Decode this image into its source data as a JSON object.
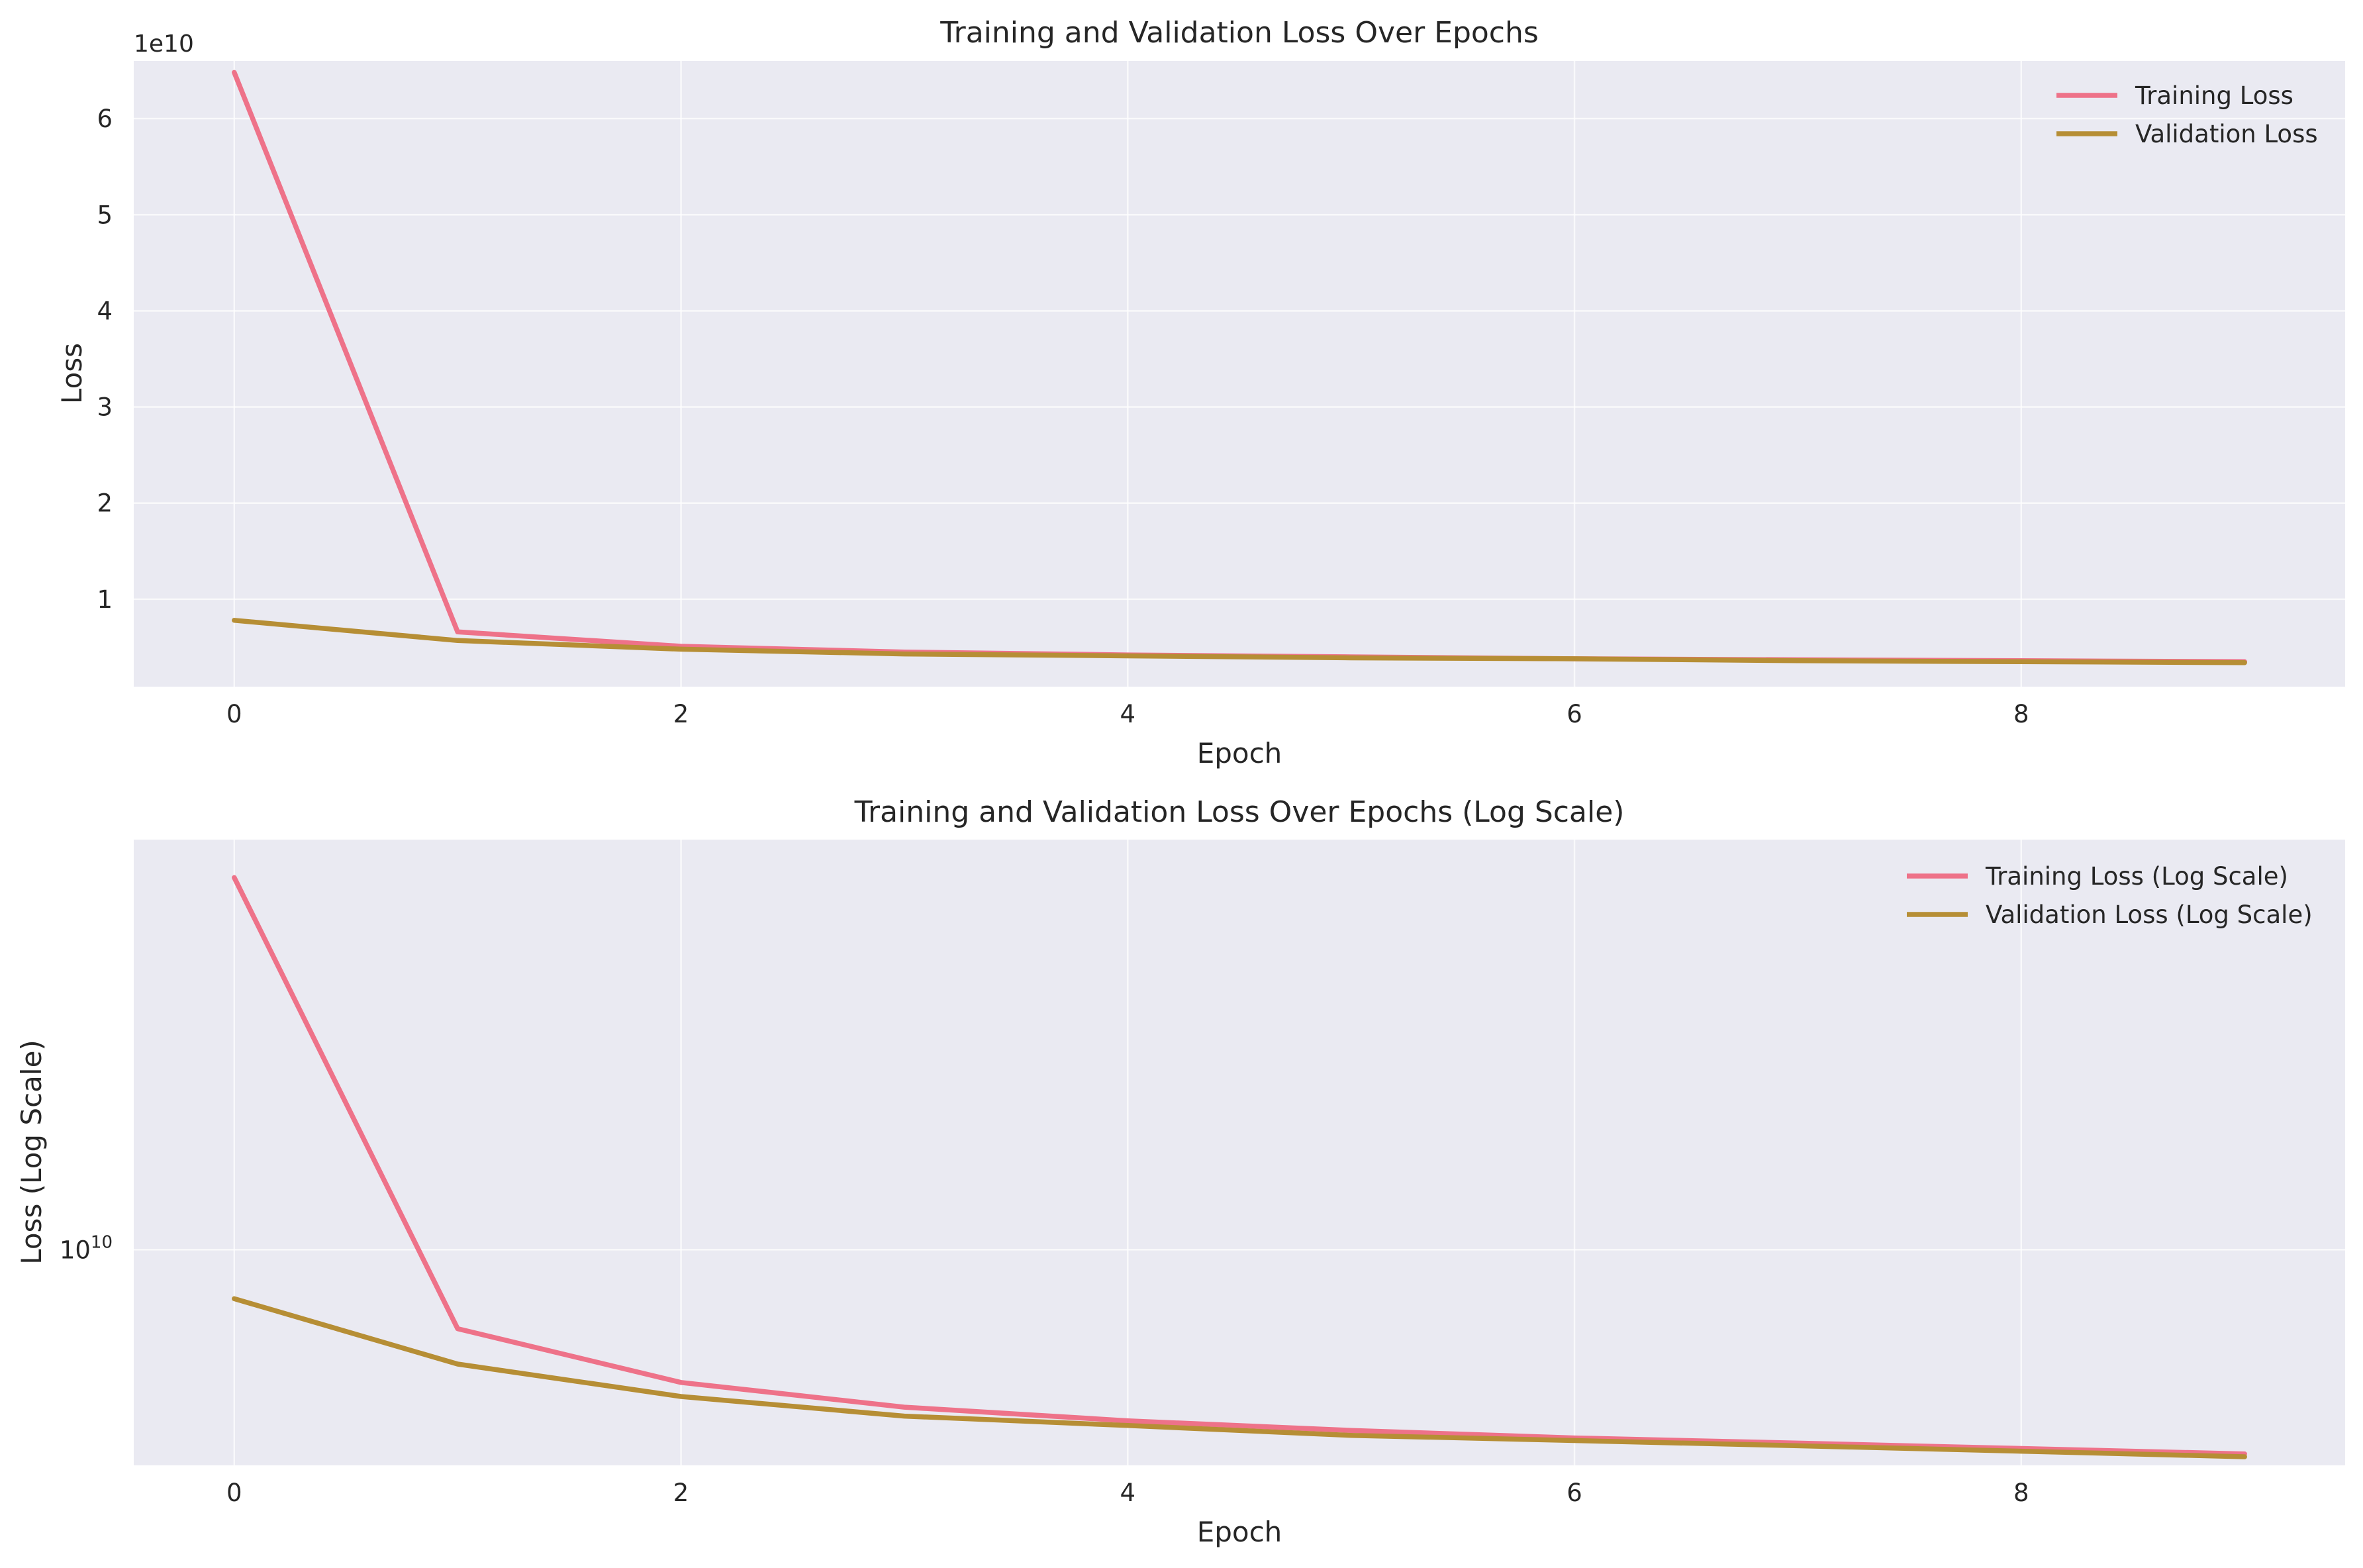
{
  "colors": {
    "background": "#ffffff",
    "axes_face": "#eaeaf2",
    "grid": "#ffffff",
    "text": "#262626",
    "training": "#ee7289",
    "validation": "#b68e35"
  },
  "chart_data": [
    {
      "type": "line",
      "title": "Training and Validation Loss Over Epochs",
      "xlabel": "Epoch",
      "ylabel": "Loss",
      "y_offset_text": "1e10",
      "yscale": "linear",
      "xlim": [
        -0.45,
        9.45
      ],
      "ylim": [
        0.09,
        6.6
      ],
      "xticks": [
        0,
        2,
        4,
        6,
        8
      ],
      "xtick_labels": [
        "0",
        "2",
        "4",
        "6",
        "8"
      ],
      "yticks": [
        1,
        2,
        3,
        4,
        5,
        6
      ],
      "ytick_labels": [
        "1",
        "2",
        "3",
        "4",
        "5",
        "6"
      ],
      "grid": true,
      "legend_location": "upper right",
      "x": [
        0,
        1,
        2,
        3,
        4,
        5,
        6,
        7,
        8,
        9
      ],
      "series": [
        {
          "name": "Training Loss",
          "color_key": "training",
          "values": [
            6.48,
            0.66,
            0.51,
            0.45,
            0.42,
            0.4,
            0.38,
            0.37,
            0.36,
            0.35
          ]
        },
        {
          "name": "Validation Loss",
          "color_key": "validation",
          "values": [
            0.78,
            0.57,
            0.48,
            0.43,
            0.41,
            0.39,
            0.38,
            0.36,
            0.35,
            0.34
          ]
        }
      ]
    },
    {
      "type": "line",
      "title": "Training and Validation Loss Over Epochs (Log Scale)",
      "xlabel": "Epoch",
      "ylabel": "Loss (Log Scale)",
      "yscale": "log",
      "xlim": [
        -0.45,
        9.45
      ],
      "ylim": [
        3350000000.0,
        80000000000.0
      ],
      "xticks": [
        0,
        2,
        4,
        6,
        8
      ],
      "xtick_labels": [
        "0",
        "2",
        "4",
        "6",
        "8"
      ],
      "yticks": [
        10000000000.0
      ],
      "ytick_labels": [
        {
          "base": "10",
          "exp": "10"
        }
      ],
      "grid": true,
      "legend_location": "upper right",
      "x": [
        0,
        1,
        2,
        3,
        4,
        5,
        6,
        7,
        8,
        9
      ],
      "series": [
        {
          "name": "Training Loss (Log Scale)",
          "color_key": "training",
          "values": [
            66000000000.0,
            6700000000.0,
            5100000000.0,
            4500000000.0,
            4200000000.0,
            4000000000.0,
            3850000000.0,
            3750000000.0,
            3650000000.0,
            3550000000.0
          ]
        },
        {
          "name": "Validation Loss (Log Scale)",
          "color_key": "validation",
          "values": [
            7800000000.0,
            5600000000.0,
            4750000000.0,
            4300000000.0,
            4100000000.0,
            3900000000.0,
            3800000000.0,
            3700000000.0,
            3600000000.0,
            3500000000.0
          ]
        }
      ]
    }
  ]
}
